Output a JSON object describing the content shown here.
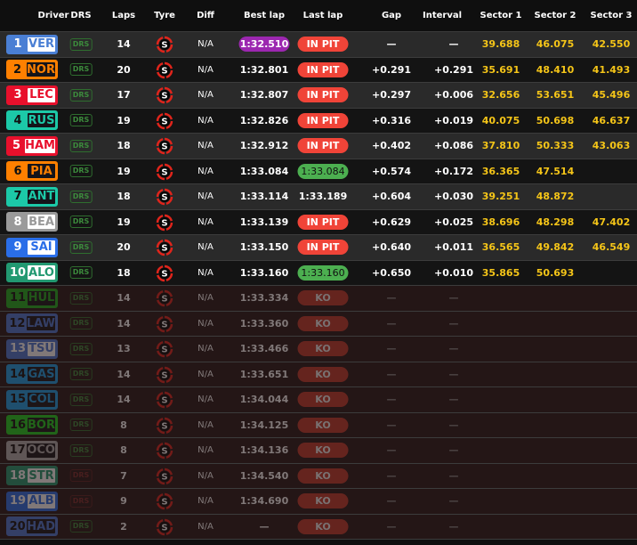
{
  "headers": [
    "Driver",
    "DRS",
    "Laps",
    "Tyre",
    "Diff",
    "Best lap",
    "Last lap",
    "Gap",
    "Interval",
    "Sector 1",
    "Sector 2",
    "Sector 3"
  ],
  "colors": {
    "in_pit": "#f04438",
    "fastest": "#9c27b0",
    "personal_best": "#4caf50",
    "sector": "#f5c518",
    "drs": "#3c8a3c"
  },
  "rows": [
    {
      "pos": "1",
      "code": "VER",
      "team": "#4a7fd4",
      "box": "light",
      "drs": "DRS",
      "laps": "14",
      "tyre": "S",
      "diff": "N/A",
      "best": "1:32.510",
      "best_style": "purple",
      "last": "IN PIT",
      "last_style": "pit",
      "gap": "—",
      "interval": "—",
      "s1": "39.688",
      "s2": "46.075",
      "s3": "42.550"
    },
    {
      "pos": "2",
      "code": "NOR",
      "team": "#ff8000",
      "box": "dark",
      "drs": "DRS",
      "laps": "20",
      "tyre": "S",
      "diff": "N/A",
      "best": "1:32.801",
      "last": "IN PIT",
      "last_style": "pit",
      "gap": "+0.291",
      "interval": "+0.291",
      "s1": "35.691",
      "s2": "48.410",
      "s3": "41.493"
    },
    {
      "pos": "3",
      "code": "LEC",
      "team": "#e8102c",
      "box": "light",
      "drs": "DRS",
      "laps": "17",
      "tyre": "S",
      "diff": "N/A",
      "best": "1:32.807",
      "last": "IN PIT",
      "last_style": "pit",
      "gap": "+0.297",
      "interval": "+0.006",
      "s1": "32.656",
      "s2": "53.651",
      "s3": "45.496"
    },
    {
      "pos": "4",
      "code": "RUS",
      "team": "#1cc9a8",
      "box": "dark",
      "drs": "DRS",
      "laps": "19",
      "tyre": "S",
      "diff": "N/A",
      "best": "1:32.826",
      "last": "IN PIT",
      "last_style": "pit",
      "gap": "+0.316",
      "interval": "+0.019",
      "s1": "40.075",
      "s2": "50.698",
      "s3": "46.637"
    },
    {
      "pos": "5",
      "code": "HAM",
      "team": "#e8102c",
      "box": "light",
      "drs": "DRS",
      "laps": "18",
      "tyre": "S",
      "diff": "N/A",
      "best": "1:32.912",
      "last": "IN PIT",
      "last_style": "pit",
      "gap": "+0.402",
      "interval": "+0.086",
      "s1": "37.810",
      "s2": "50.333",
      "s3": "43.063"
    },
    {
      "pos": "6",
      "code": "PIA",
      "team": "#ff8000",
      "box": "dark",
      "drs": "DRS",
      "laps": "19",
      "tyre": "S",
      "diff": "N/A",
      "best": "1:33.084",
      "last": "1:33.084",
      "last_style": "green",
      "gap": "+0.574",
      "interval": "+0.172",
      "s1": "36.365",
      "s2": "47.514",
      "s3": ""
    },
    {
      "pos": "7",
      "code": "ANT",
      "team": "#1cc9a8",
      "box": "dark",
      "drs": "DRS",
      "laps": "18",
      "tyre": "S",
      "diff": "N/A",
      "best": "1:33.114",
      "last": "1:33.189",
      "last_style": "plain",
      "gap": "+0.604",
      "interval": "+0.030",
      "s1": "39.251",
      "s2": "48.872",
      "s3": ""
    },
    {
      "pos": "8",
      "code": "BEA",
      "team": "#9a9a9a",
      "box": "light",
      "drs": "DRS",
      "laps": "19",
      "tyre": "S",
      "diff": "N/A",
      "best": "1:33.139",
      "last": "IN PIT",
      "last_style": "pit",
      "gap": "+0.629",
      "interval": "+0.025",
      "s1": "38.696",
      "s2": "48.298",
      "s3": "47.402"
    },
    {
      "pos": "9",
      "code": "SAI",
      "team": "#2a6ee8",
      "box": "light",
      "drs": "DRS",
      "laps": "20",
      "tyre": "S",
      "diff": "N/A",
      "best": "1:33.150",
      "last": "IN PIT",
      "last_style": "pit",
      "gap": "+0.640",
      "interval": "+0.011",
      "s1": "36.565",
      "s2": "49.842",
      "s3": "46.549"
    },
    {
      "pos": "10",
      "code": "ALO",
      "team": "#229971",
      "box": "light",
      "drs": "DRS",
      "laps": "18",
      "tyre": "S",
      "diff": "N/A",
      "best": "1:33.160",
      "last": "1:33.160",
      "last_style": "green",
      "gap": "+0.650",
      "interval": "+0.010",
      "s1": "35.865",
      "s2": "50.693",
      "s3": ""
    },
    {
      "pos": "11",
      "code": "HUL",
      "team": "#1fae1f",
      "box": "dark",
      "drs": "DRS",
      "laps": "14",
      "tyre": "S",
      "diff": "N/A",
      "best": "1:33.334",
      "last": "KO",
      "last_style": "ko",
      "gap": "—",
      "interval": "—",
      "s1": "",
      "s2": "",
      "s3": "",
      "out": true
    },
    {
      "pos": "12",
      "code": "LAW",
      "team": "#4a78d4",
      "box": "dark",
      "drs": "DRS",
      "laps": "14",
      "tyre": "S",
      "diff": "N/A",
      "best": "1:33.360",
      "last": "KO",
      "last_style": "ko",
      "gap": "—",
      "interval": "—",
      "s1": "",
      "s2": "",
      "s3": "",
      "out": true
    },
    {
      "pos": "13",
      "code": "TSU",
      "team": "#4a78d4",
      "box": "light",
      "drs": "DRS",
      "laps": "13",
      "tyre": "S",
      "diff": "N/A",
      "best": "1:33.466",
      "last": "KO",
      "last_style": "ko",
      "gap": "—",
      "interval": "—",
      "s1": "",
      "s2": "",
      "s3": "",
      "out": true
    },
    {
      "pos": "14",
      "code": "GAS",
      "team": "#1a9ee8",
      "box": "dark",
      "drs": "DRS",
      "laps": "14",
      "tyre": "S",
      "diff": "N/A",
      "best": "1:33.651",
      "last": "KO",
      "last_style": "ko",
      "gap": "—",
      "interval": "—",
      "s1": "",
      "s2": "",
      "s3": "",
      "out": true
    },
    {
      "pos": "15",
      "code": "COL",
      "team": "#1a9ee8",
      "box": "dark",
      "drs": "DRS",
      "laps": "14",
      "tyre": "S",
      "diff": "N/A",
      "best": "1:34.044",
      "last": "KO",
      "last_style": "ko",
      "gap": "—",
      "interval": "—",
      "s1": "",
      "s2": "",
      "s3": "",
      "out": true
    },
    {
      "pos": "16",
      "code": "BOR",
      "team": "#1fd11f",
      "box": "dark",
      "drs": "DRS",
      "laps": "8",
      "tyre": "S",
      "diff": "N/A",
      "best": "1:34.125",
      "last": "KO",
      "last_style": "ko",
      "gap": "—",
      "interval": "—",
      "s1": "",
      "s2": "",
      "s3": "",
      "out": true
    },
    {
      "pos": "17",
      "code": "OCO",
      "team": "#b0b0b0",
      "box": "dark",
      "drs": "DRS",
      "laps": "8",
      "tyre": "S",
      "diff": "N/A",
      "best": "1:34.136",
      "last": "KO",
      "last_style": "ko",
      "gap": "—",
      "interval": "—",
      "s1": "",
      "s2": "",
      "s3": "",
      "out": true
    },
    {
      "pos": "18",
      "code": "STR",
      "team": "#229971",
      "box": "light",
      "drs": "DRS",
      "drs_off": true,
      "laps": "7",
      "tyre": "S",
      "diff": "N/A",
      "best": "1:34.540",
      "last": "KO",
      "last_style": "ko",
      "gap": "—",
      "interval": "—",
      "s1": "",
      "s2": "",
      "s3": "",
      "out": true
    },
    {
      "pos": "19",
      "code": "ALB",
      "team": "#2a6ee8",
      "box": "light",
      "drs": "DRS",
      "drs_off": true,
      "laps": "9",
      "tyre": "S",
      "diff": "N/A",
      "best": "1:34.690",
      "last": "KO",
      "last_style": "ko",
      "gap": "—",
      "interval": "—",
      "s1": "",
      "s2": "",
      "s3": "",
      "out": true
    },
    {
      "pos": "20",
      "code": "HAD",
      "team": "#4a78d4",
      "box": "dark",
      "drs": "DRS",
      "laps": "2",
      "tyre": "S",
      "diff": "N/A",
      "best": "—",
      "last": "KO",
      "last_style": "ko",
      "gap": "—",
      "interval": "—",
      "s1": "",
      "s2": "",
      "s3": "",
      "out": true
    }
  ]
}
